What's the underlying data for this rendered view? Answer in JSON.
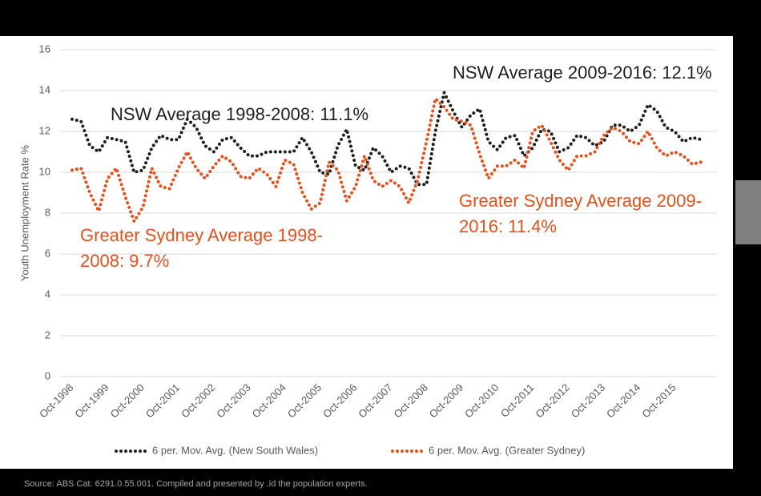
{
  "chart_data": {
    "type": "line",
    "ylabel": "Youth Unemployment Rate %",
    "categories": [
      "Oct-1998",
      null,
      null,
      null,
      "Oct-1999",
      null,
      null,
      null,
      "Oct-2000",
      null,
      null,
      null,
      "Oct-2001",
      null,
      null,
      null,
      "Oct-2002",
      null,
      null,
      null,
      "Oct-2003",
      null,
      null,
      null,
      "Oct-2004",
      null,
      null,
      null,
      "Oct-2005",
      null,
      null,
      null,
      "Oct-2006",
      null,
      null,
      null,
      "Oct-2007",
      null,
      null,
      null,
      "Oct-2008",
      null,
      null,
      null,
      "Oct-2009",
      null,
      null,
      null,
      "Oct-2010",
      null,
      null,
      null,
      "Oct-2011",
      null,
      null,
      null,
      "Oct-2012",
      null,
      null,
      null,
      "Oct-2013",
      null,
      null,
      null,
      "Oct-2014",
      null,
      null,
      null,
      "Oct-2015",
      null,
      null,
      null
    ],
    "series": [
      {
        "name": "6 per. Mov. Avg. (New South Wales)",
        "color": "#1f1f1f",
        "values": [
          12.6,
          12.5,
          11.3,
          11.0,
          11.7,
          11.6,
          11.5,
          10.0,
          10.1,
          11.2,
          11.8,
          11.6,
          11.6,
          12.6,
          12.2,
          11.3,
          11.0,
          11.6,
          11.7,
          11.2,
          10.8,
          10.8,
          11.0,
          11.0,
          11.0,
          11.0,
          11.7,
          11.0,
          10.0,
          9.9,
          11.3,
          12.1,
          10.3,
          10.1,
          11.2,
          10.8,
          10.0,
          10.3,
          10.2,
          9.4,
          9.4,
          12.0,
          13.9,
          13.0,
          12.2,
          12.8,
          13.1,
          11.5,
          11.1,
          11.7,
          11.8,
          10.8,
          11.2,
          12.1,
          12.0,
          11.0,
          11.2,
          11.8,
          11.7,
          11.3,
          11.5,
          12.3,
          12.3,
          12.0,
          12.3,
          13.3,
          13.0,
          12.2,
          12.0,
          11.5,
          11.7,
          11.6
        ]
      },
      {
        "name": "6 per. Mov. Avg. (Greater Sydney)",
        "color": "#e8501a",
        "values": [
          10.1,
          10.2,
          9.0,
          8.1,
          9.7,
          10.2,
          8.8,
          7.6,
          8.3,
          10.2,
          9.3,
          9.2,
          10.2,
          11.0,
          10.2,
          9.7,
          10.3,
          10.8,
          10.5,
          9.8,
          9.7,
          10.2,
          9.9,
          9.3,
          10.6,
          10.4,
          9.0,
          8.2,
          8.5,
          10.5,
          10.1,
          8.6,
          9.3,
          10.8,
          9.6,
          9.3,
          9.6,
          9.3,
          8.5,
          9.6,
          11.5,
          13.6,
          13.2,
          12.6,
          12.5,
          12.3,
          10.9,
          9.7,
          10.3,
          10.3,
          10.6,
          10.2,
          12.0,
          12.3,
          11.5,
          10.6,
          10.1,
          10.8,
          10.8,
          11.0,
          11.8,
          12.2,
          12.0,
          11.5,
          11.4,
          12.0,
          11.2,
          10.8,
          11.0,
          10.8,
          10.4,
          10.5
        ]
      }
    ],
    "ylim": [
      0,
      16
    ],
    "yticks": [
      0,
      2,
      4,
      6,
      8,
      10,
      12,
      14,
      16
    ],
    "grid": true,
    "legend": "bottom",
    "annotations": [
      {
        "lines": [
          "NSW Average 1998-2008: 11.1%"
        ],
        "color": "#1f1f1f"
      },
      {
        "lines": [
          "NSW Average 2009-2016: 12.1%"
        ],
        "color": "#1f1f1f"
      },
      {
        "lines": [
          "Greater Sydney Average 1998-",
          "2008: 9.7%"
        ],
        "color": "#e8501a"
      },
      {
        "lines": [
          "Greater Sydney Average 2009-",
          "2016: 11.4%"
        ],
        "color": "#e8501a"
      }
    ],
    "source": "Source: ABS Cat. 6291.0.55.001. Compiled and presented by .id the population experts."
  }
}
